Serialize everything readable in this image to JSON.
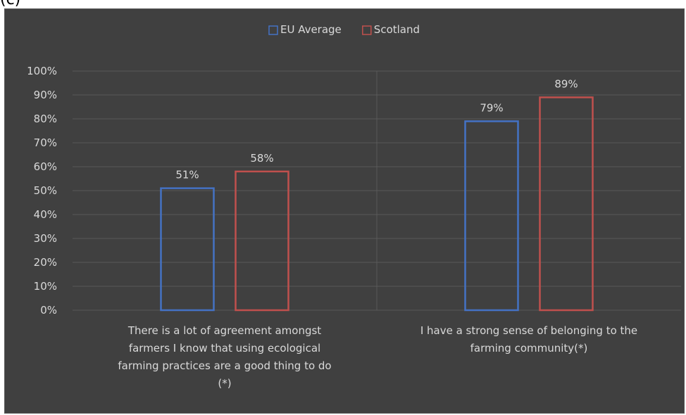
{
  "panel_label": "(c)",
  "chart_data": {
    "type": "bar",
    "title": "",
    "xlabel": "",
    "ylabel": "",
    "categories": [
      [
        "There is a lot of agreement amongst",
        "farmers I know that using ecological",
        "farming practices are a good thing to do",
        "(*)"
      ],
      [
        "I have a strong sense of belonging to the",
        "farming community(*)"
      ]
    ],
    "series": [
      {
        "name": "EU Average",
        "values": [
          51,
          79
        ],
        "color": "#4472c4"
      },
      {
        "name": "Scotland",
        "values": [
          58,
          89
        ],
        "color": "#c0504d"
      }
    ],
    "data_labels": [
      [
        "51%",
        "79%"
      ],
      [
        "58%",
        "89%"
      ]
    ],
    "y_ticks": [
      "0%",
      "10%",
      "20%",
      "30%",
      "40%",
      "50%",
      "60%",
      "70%",
      "80%",
      "90%",
      "100%"
    ],
    "ylim": [
      0,
      100
    ],
    "grid": true,
    "legend_position": "top-center",
    "background_color": "#404040",
    "grid_color": "#595959",
    "text_color": "#d9d9d9"
  }
}
